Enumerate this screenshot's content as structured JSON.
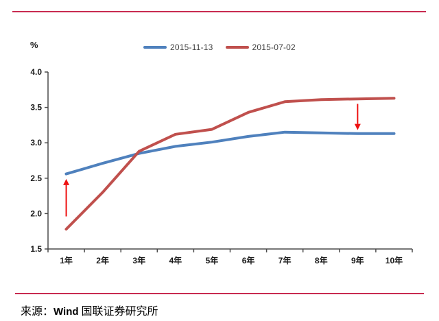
{
  "page": {
    "accent_rule_color": "#c82b50",
    "background": "#ffffff"
  },
  "chart_data": {
    "type": "line",
    "title": "",
    "xlabel": "",
    "ylabel": "%",
    "categories": [
      "1年",
      "2年",
      "3年",
      "4年",
      "5年",
      "6年",
      "7年",
      "8年",
      "9年",
      "10年"
    ],
    "series": [
      {
        "name": "2015-11-13",
        "color": "#4f81bd",
        "values": [
          2.56,
          2.71,
          2.85,
          2.95,
          3.01,
          3.09,
          3.15,
          3.14,
          3.13,
          3.13
        ]
      },
      {
        "name": "2015-07-02",
        "color": "#c0504d",
        "values": [
          1.78,
          2.3,
          2.88,
          3.12,
          3.19,
          3.43,
          3.58,
          3.61,
          3.62,
          3.63
        ]
      }
    ],
    "ylim": [
      1.5,
      4.0
    ],
    "yticks": [
      1.5,
      2.0,
      2.5,
      3.0,
      3.5,
      4.0
    ],
    "ytick_labels": [
      "1.5",
      "2.0",
      "2.5",
      "3.0",
      "3.5",
      "4.0"
    ],
    "grid": false,
    "legend_position": "top-center",
    "annotations": [
      {
        "shape": "arrow-up",
        "at_category": "1年",
        "category_index": 0,
        "from_value": 1.96,
        "to_value": 2.49,
        "color": "#ee1111"
      },
      {
        "shape": "arrow-down",
        "at_category": "9年",
        "category_index": 8,
        "from_value": 3.55,
        "to_value": 3.18,
        "color": "#ee1111"
      }
    ]
  },
  "footer": {
    "source_prefix": "来源：",
    "source_vendor": "Wind",
    "source_org": " 国联证券研究所"
  }
}
